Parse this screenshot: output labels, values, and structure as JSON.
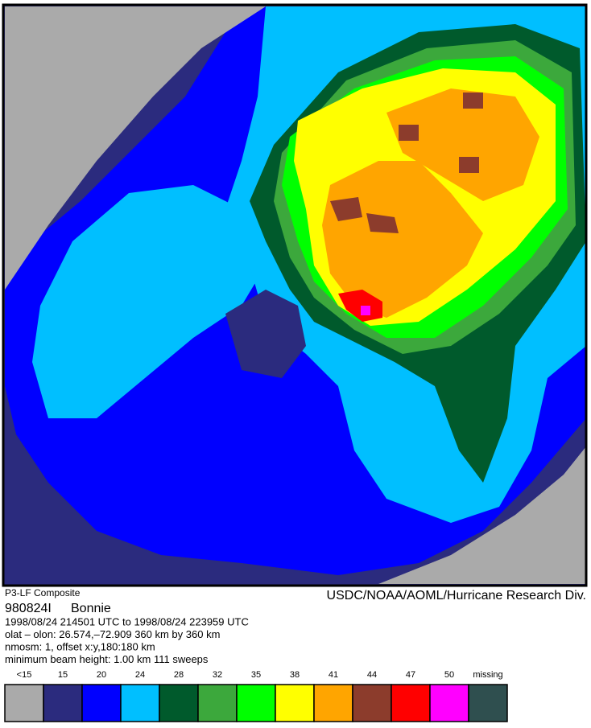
{
  "header": {
    "product": "P3-LF Composite",
    "agency": "USDC/NOAA/AOML/Hurricane Research Div.",
    "flight": "980824I",
    "storm": "Bonnie"
  },
  "info": [
    "1998/08/24 214501 UTC to 1998/08/24 223959 UTC",
    "olat – olon: 26.574,–72.909  360 km by 360 km",
    "nmosm: 1, offset x:y,180:180 km",
    "minimum beam height: 1.00 km      111 sweeps"
  ],
  "legend": [
    {
      "label": "<15",
      "color": "#aaaaaa"
    },
    {
      "label": "15",
      "color": "#2b2b7e"
    },
    {
      "label": "20",
      "color": "#0000ff"
    },
    {
      "label": "24",
      "color": "#00bfff"
    },
    {
      "label": "28",
      "color": "#005a2c"
    },
    {
      "label": "32",
      "color": "#3ca83c"
    },
    {
      "label": "35",
      "color": "#00ff00"
    },
    {
      "label": "38",
      "color": "#ffff00"
    },
    {
      "label": "41",
      "color": "#ffa500"
    },
    {
      "label": "44",
      "color": "#8c3c2c"
    },
    {
      "label": "47",
      "color": "#ff0000"
    },
    {
      "label": "50",
      "color": "#ff00ff"
    },
    {
      "label": "missing",
      "color": "#2f4f4f"
    }
  ]
}
